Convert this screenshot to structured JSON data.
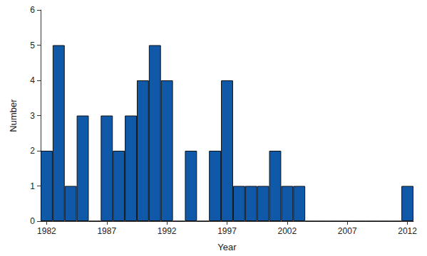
{
  "chart_data": {
    "type": "bar",
    "x_label": "Year",
    "y_label": "Number",
    "categories": [
      "1982",
      null,
      null,
      null,
      null,
      "1987",
      null,
      null,
      null,
      null,
      "1992",
      null,
      null,
      null,
      null,
      "1997",
      null,
      null,
      null,
      null,
      "2002",
      null,
      null,
      null,
      null,
      "2007",
      null,
      null,
      null,
      null,
      "2012"
    ],
    "values": [
      2,
      5,
      1,
      3,
      0,
      3,
      2,
      3,
      4,
      5,
      4,
      0,
      2,
      0,
      2,
      4,
      1,
      1,
      1,
      2,
      1,
      1,
      0,
      0,
      0,
      0,
      0,
      0,
      0,
      0,
      1
    ],
    "color": "#1059a8",
    "ylim": [
      0,
      6
    ],
    "yticks": [
      0,
      1,
      2,
      3,
      4,
      5,
      6
    ],
    "grid": false
  }
}
